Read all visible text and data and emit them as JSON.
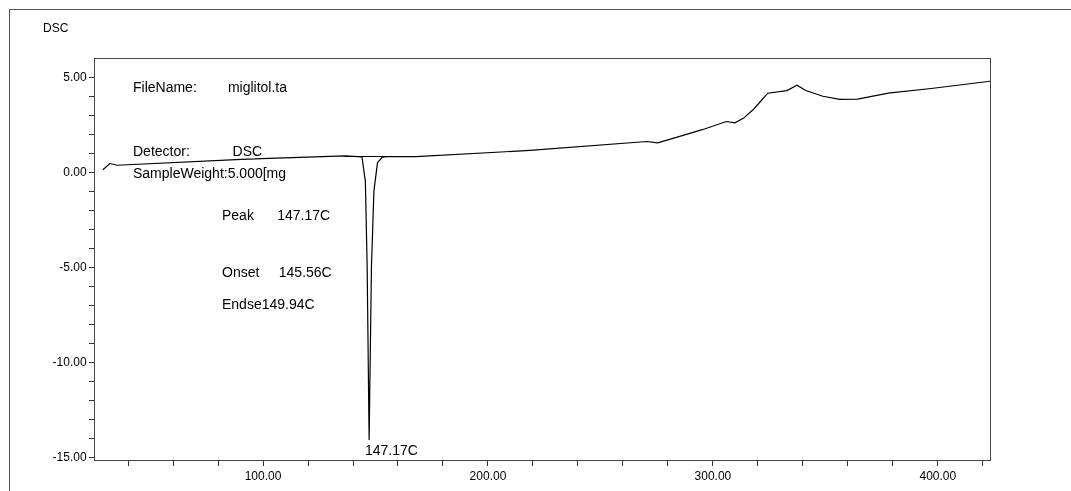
{
  "chart_data": {
    "type": "line",
    "ylabel": "DSC",
    "grid": false,
    "marker": "none",
    "line_style": "solid",
    "xlim": [
      25.3,
      423.2
    ],
    "ylim": [
      -15.15,
      5.95
    ],
    "xticks": [
      {
        "value": 40,
        "label": null
      },
      {
        "value": 60,
        "label": null
      },
      {
        "value": 80,
        "label": null
      },
      {
        "value": 100,
        "label": "100.00"
      },
      {
        "value": 120,
        "label": null
      },
      {
        "value": 140,
        "label": null
      },
      {
        "value": 160,
        "label": null
      },
      {
        "value": 180,
        "label": null
      },
      {
        "value": 200,
        "label": "200.00"
      },
      {
        "value": 220,
        "label": null
      },
      {
        "value": 240,
        "label": null
      },
      {
        "value": 260,
        "label": null
      },
      {
        "value": 280,
        "label": null
      },
      {
        "value": 300,
        "label": "300.00"
      },
      {
        "value": 320,
        "label": null
      },
      {
        "value": 340,
        "label": null
      },
      {
        "value": 360,
        "label": null
      },
      {
        "value": 380,
        "label": null
      },
      {
        "value": 400,
        "label": "400.00"
      },
      {
        "value": 420,
        "label": null
      }
    ],
    "yticks": [
      {
        "value": -15,
        "label": "-15.00"
      },
      {
        "value": -14,
        "label": null
      },
      {
        "value": -13,
        "label": null
      },
      {
        "value": -12,
        "label": null
      },
      {
        "value": -11,
        "label": null
      },
      {
        "value": -10,
        "label": "-10.00"
      },
      {
        "value": -9,
        "label": null
      },
      {
        "value": -8,
        "label": null
      },
      {
        "value": -7,
        "label": null
      },
      {
        "value": -6,
        "label": null
      },
      {
        "value": -5,
        "label": "-5.00"
      },
      {
        "value": -4,
        "label": null
      },
      {
        "value": -3,
        "label": null
      },
      {
        "value": -2,
        "label": null
      },
      {
        "value": -1,
        "label": null
      },
      {
        "value": 0,
        "label": "0.00"
      },
      {
        "value": 1,
        "label": null
      },
      {
        "value": 2,
        "label": null
      },
      {
        "value": 3,
        "label": null
      },
      {
        "value": 4,
        "label": null
      },
      {
        "value": 5,
        "label": "5.00"
      }
    ],
    "series": [
      {
        "color": "#000000",
        "x": [
          28.8,
          31.9,
          35.2,
          90.4,
          136.4,
          144,
          145.5,
          146.3,
          147.17,
          148.2,
          149.3,
          150.9,
          153,
          156.3,
          168,
          218.7,
          270.7,
          275.4,
          281.5,
          295.3,
          306,
          309.8,
          313.7,
          318.2,
          324.4,
          332.9,
          337.4,
          341.3,
          348.9,
          356.4,
          364.3,
          378,
          398,
          423.2
        ],
        "values": [
          0.12,
          0.45,
          0.36,
          0.67,
          0.85,
          0.8,
          -0.5,
          -5,
          -14.1,
          -5,
          -1,
          0.5,
          0.78,
          0.82,
          0.81,
          1.14,
          1.61,
          1.54,
          1.75,
          2.23,
          2.66,
          2.59,
          2.84,
          3.32,
          4.15,
          4.29,
          4.57,
          4.29,
          3.99,
          3.83,
          3.84,
          4.15,
          4.41,
          4.78
        ]
      },
      {
        "color": "#000000",
        "x": [
          136.4,
          166
        ],
        "values": [
          0.82,
          0.82
        ]
      }
    ],
    "annotations": [
      "FileName:        miglitol.ta",
      "Detector:           DSC",
      "SampleWeight:5.000[mg",
      "Peak      147.17C",
      "Onset     145.56C",
      "Endse149.94C",
      {
        "text": "147.17C",
        "x": 147.17,
        "y": -14.1
      }
    ]
  }
}
